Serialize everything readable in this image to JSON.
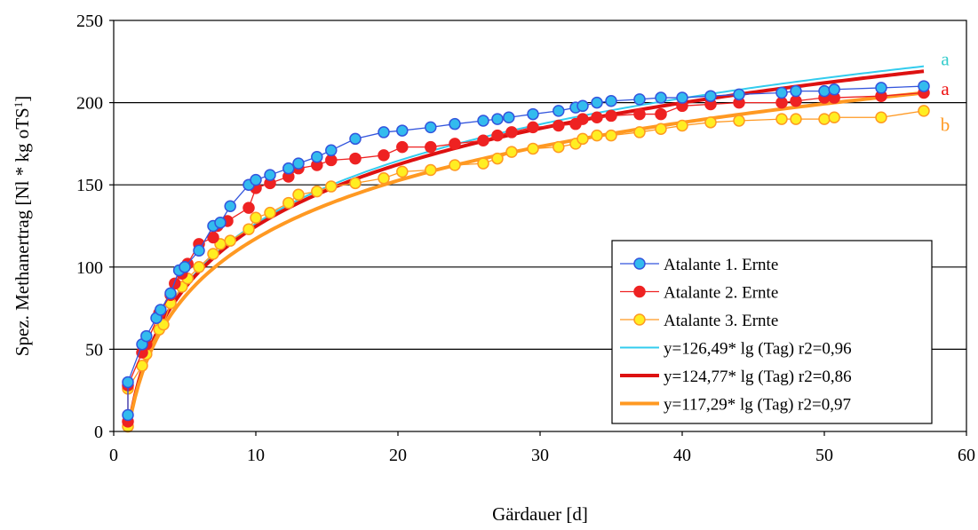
{
  "chart_data": {
    "type": "line",
    "xlabel": "Gärdauer [d]",
    "ylabel_main": "Spez. Methanertrag [Nl * kg oTS",
    "ylabel_sup": "1",
    "ylabel_end": "]",
    "xlim": [
      0,
      60
    ],
    "ylim": [
      0,
      250
    ],
    "x_ticks": [
      0,
      10,
      20,
      30,
      40,
      50,
      60
    ],
    "y_ticks": [
      0,
      50,
      100,
      150,
      200,
      250
    ],
    "grid": "horizontal",
    "legend_position": "lower-right",
    "series": [
      {
        "name": "Atalante 1. Ernte",
        "color": "#3355dd",
        "marker_fill": "#33bbee",
        "x": [
          1,
          1,
          2,
          2.3,
          3,
          3.3,
          4,
          4.6,
          5,
          6,
          7,
          7.5,
          8.2,
          9.5,
          10,
          11,
          12.3,
          13,
          14.3,
          15.3,
          17,
          19,
          20.3,
          22.3,
          24,
          26,
          27,
          27.8,
          29.5,
          31.3,
          32.5,
          33,
          34,
          35,
          37,
          38.5,
          40,
          42,
          44,
          47,
          48,
          50,
          50.7,
          54,
          57
        ],
        "y": [
          10,
          30,
          53,
          58,
          69,
          74,
          84,
          98,
          100,
          110,
          125,
          127,
          137,
          150,
          153,
          156,
          160,
          163,
          167,
          171,
          178,
          182,
          183,
          185,
          187,
          189,
          190,
          191,
          193,
          195,
          197,
          198,
          200,
          201,
          202,
          203,
          203,
          204,
          205,
          206,
          207,
          207,
          208,
          209,
          210
        ]
      },
      {
        "name": "Atalante 2. Ernte",
        "color": "#ee2222",
        "marker_fill": "#ee2222",
        "x": [
          1,
          1,
          2,
          2.3,
          3.2,
          4,
          4.3,
          4.8,
          5.2,
          6,
          7,
          7.3,
          8,
          9.5,
          10,
          11,
          12.3,
          13,
          14.3,
          15.3,
          17,
          19,
          20.3,
          22.3,
          24,
          26,
          27,
          28,
          29.5,
          31.3,
          32.5,
          33,
          34,
          35,
          37,
          38.5,
          40,
          42,
          44,
          47,
          48,
          50,
          50.7,
          54,
          57
        ],
        "y": [
          6,
          28,
          48,
          53,
          72,
          83,
          90,
          96,
          102,
          114,
          118,
          125,
          128,
          136,
          148,
          151,
          155,
          160,
          162,
          165,
          166,
          168,
          173,
          173,
          175,
          177,
          180,
          182,
          185,
          186,
          187,
          190,
          191,
          192,
          193,
          193,
          198,
          199,
          200,
          200,
          201,
          203,
          203,
          204,
          206
        ]
      },
      {
        "name": "Atalante 3. Ernte",
        "color": "#ff9922",
        "marker_fill": "#ffee22",
        "x": [
          1,
          1,
          2,
          2.3,
          3.2,
          3.5,
          4,
          4.8,
          5.2,
          6,
          7,
          7.5,
          8.2,
          9.5,
          10,
          11,
          12.3,
          13,
          14.3,
          15.3,
          17,
          19,
          20.3,
          22.3,
          24,
          26,
          27,
          28,
          29.5,
          31.3,
          32.5,
          33,
          34,
          35,
          37,
          38.5,
          40,
          42,
          44,
          47,
          48,
          50,
          50.7,
          54,
          57
        ],
        "y": [
          3,
          26,
          40,
          47,
          62,
          65,
          78,
          88,
          93,
          100,
          108,
          114,
          116,
          123,
          130,
          133,
          139,
          144,
          146,
          149,
          151,
          154,
          158,
          159,
          162,
          163,
          166,
          170,
          172,
          173,
          175,
          178,
          180,
          180,
          182,
          184,
          186,
          188,
          189,
          190,
          190,
          190,
          191,
          191,
          195
        ]
      },
      {
        "name": "y=126,49* lg (Tag) r2=0,96",
        "color": "#33ccee",
        "coef": 126.49,
        "kind": "fit",
        "stroke": 2
      },
      {
        "name": "y=124,77* lg (Tag) r2=0,86",
        "color": "#dd1111",
        "coef": 124.77,
        "kind": "fit",
        "stroke": 4
      },
      {
        "name": "y=117,29* lg (Tag) r2=0,97",
        "color": "#ff9922",
        "coef": 117.29,
        "kind": "fit",
        "stroke": 4
      }
    ],
    "annotations": [
      {
        "text": "a",
        "color": "#33cccc",
        "x": 58.5,
        "y": 226
      },
      {
        "text": "a",
        "color": "#ee1111",
        "x": 58.5,
        "y": 208
      },
      {
        "text": "b",
        "color": "#ff9922",
        "x": 58.5,
        "y": 186
      }
    ]
  }
}
